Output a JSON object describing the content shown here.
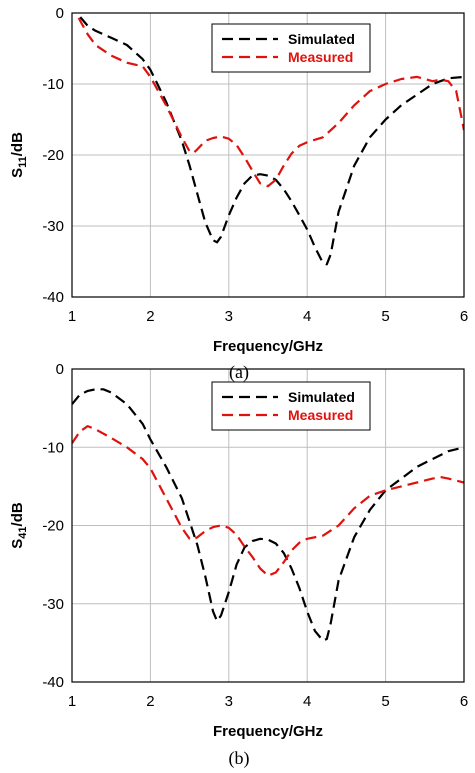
{
  "chart_data": [
    {
      "type": "line",
      "caption": "(a)",
      "xlabel": "Frequency/GHz",
      "ylabel_main": "S",
      "ylabel_sub": "11",
      "ylabel_unit": "/dB",
      "xlim": [
        1,
        6
      ],
      "ylim": [
        -40,
        0
      ],
      "xticks": [
        1,
        2,
        3,
        4,
        5,
        6
      ],
      "yticks": [
        0,
        -10,
        -20,
        -30,
        -40
      ],
      "grid": true,
      "legend_position": "top-right",
      "series": [
        {
          "name": "Simulated",
          "color": "#000000",
          "x": [
            1.0,
            1.1,
            1.2,
            1.3,
            1.5,
            1.7,
            1.9,
            2.0,
            2.2,
            2.4,
            2.5,
            2.6,
            2.7,
            2.8,
            2.85,
            2.9,
            3.0,
            3.1,
            3.2,
            3.3,
            3.4,
            3.5,
            3.6,
            3.7,
            3.8,
            3.9,
            4.0,
            4.1,
            4.2,
            4.25,
            4.3,
            4.4,
            4.6,
            4.8,
            5.0,
            5.2,
            5.4,
            5.6,
            5.8,
            6.0
          ],
          "y": [
            1.5,
            -0.5,
            -1.8,
            -2.5,
            -3.5,
            -4.5,
            -6.5,
            -8.0,
            -12.5,
            -18.0,
            -21.5,
            -25.5,
            -29.5,
            -32.0,
            -32.3,
            -31.5,
            -28.5,
            -26.0,
            -24.0,
            -22.9,
            -22.7,
            -22.9,
            -23.5,
            -24.8,
            -26.5,
            -28.5,
            -30.5,
            -33.0,
            -35.2,
            -35.4,
            -34.0,
            -28.0,
            -21.5,
            -17.5,
            -15.0,
            -13.0,
            -11.5,
            -10.0,
            -9.2,
            -9.0
          ]
        },
        {
          "name": "Measured",
          "color": "#e0120e",
          "x": [
            1.0,
            1.1,
            1.2,
            1.3,
            1.5,
            1.7,
            1.9,
            2.0,
            2.2,
            2.4,
            2.5,
            2.55,
            2.6,
            2.7,
            2.8,
            2.9,
            3.0,
            3.1,
            3.2,
            3.3,
            3.4,
            3.5,
            3.6,
            3.7,
            3.8,
            3.9,
            4.0,
            4.2,
            4.4,
            4.6,
            4.8,
            5.0,
            5.2,
            5.4,
            5.5,
            5.6,
            5.7,
            5.8,
            5.9,
            6.0
          ],
          "y": [
            1.5,
            -1.0,
            -3.0,
            -4.5,
            -6.0,
            -7.0,
            -7.5,
            -9.0,
            -13.0,
            -17.5,
            -19.5,
            -19.7,
            -19.2,
            -18.0,
            -17.6,
            -17.4,
            -17.7,
            -18.6,
            -20.3,
            -22.2,
            -24.0,
            -24.4,
            -23.5,
            -21.5,
            -19.8,
            -18.7,
            -18.2,
            -17.5,
            -15.5,
            -13.0,
            -11.0,
            -10.0,
            -9.3,
            -9.0,
            -9.3,
            -9.6,
            -9.4,
            -9.6,
            -11.0,
            -16.5
          ]
        }
      ]
    },
    {
      "type": "line",
      "caption": "(b)",
      "xlabel": "Frequency/GHz",
      "ylabel_main": "S",
      "ylabel_sub": "41",
      "ylabel_unit": "/dB",
      "xlim": [
        1,
        6
      ],
      "ylim": [
        -40,
        0
      ],
      "xticks": [
        1,
        2,
        3,
        4,
        5,
        6
      ],
      "yticks": [
        0,
        -10,
        -20,
        -30,
        -40
      ],
      "grid": true,
      "legend_position": "top-right",
      "series": [
        {
          "name": "Simulated",
          "color": "#000000",
          "x": [
            1.0,
            1.1,
            1.2,
            1.3,
            1.4,
            1.5,
            1.7,
            1.9,
            2.0,
            2.2,
            2.4,
            2.5,
            2.6,
            2.7,
            2.8,
            2.85,
            2.9,
            3.0,
            3.1,
            3.2,
            3.3,
            3.4,
            3.5,
            3.6,
            3.7,
            3.8,
            3.9,
            4.0,
            4.1,
            4.2,
            4.25,
            4.3,
            4.4,
            4.6,
            4.8,
            5.0,
            5.2,
            5.4,
            5.6,
            5.8,
            6.0
          ],
          "y": [
            -4.5,
            -3.3,
            -2.8,
            -2.6,
            -2.6,
            -3.0,
            -4.5,
            -7.0,
            -9.0,
            -12.5,
            -16.5,
            -19.5,
            -22.5,
            -26.5,
            -31.0,
            -32.2,
            -31.5,
            -28.5,
            -25.0,
            -22.8,
            -22.0,
            -21.7,
            -21.8,
            -22.3,
            -23.5,
            -25.5,
            -28.0,
            -31.0,
            -33.5,
            -34.7,
            -34.5,
            -32.5,
            -27.0,
            -21.5,
            -18.0,
            -15.5,
            -14.0,
            -12.5,
            -11.5,
            -10.5,
            -10.0
          ]
        },
        {
          "name": "Measured",
          "color": "#e0120e",
          "x": [
            1.0,
            1.1,
            1.2,
            1.3,
            1.5,
            1.7,
            1.9,
            2.0,
            2.2,
            2.4,
            2.5,
            2.55,
            2.6,
            2.7,
            2.8,
            2.9,
            3.0,
            3.1,
            3.2,
            3.3,
            3.4,
            3.5,
            3.6,
            3.7,
            3.8,
            3.9,
            4.0,
            4.2,
            4.4,
            4.6,
            4.8,
            5.0,
            5.2,
            5.4,
            5.6,
            5.7,
            5.8,
            6.0
          ],
          "y": [
            -9.5,
            -8.0,
            -7.3,
            -7.7,
            -8.8,
            -10.0,
            -11.5,
            -12.7,
            -16.5,
            -20.3,
            -21.7,
            -21.8,
            -21.5,
            -20.7,
            -20.2,
            -20.0,
            -20.3,
            -21.2,
            -22.7,
            -24.0,
            -25.5,
            -26.4,
            -26.0,
            -24.7,
            -23.2,
            -22.2,
            -21.7,
            -21.3,
            -20.0,
            -17.8,
            -16.2,
            -15.5,
            -15.0,
            -14.5,
            -14.0,
            -13.8,
            -14.0,
            -14.5
          ]
        }
      ]
    }
  ]
}
